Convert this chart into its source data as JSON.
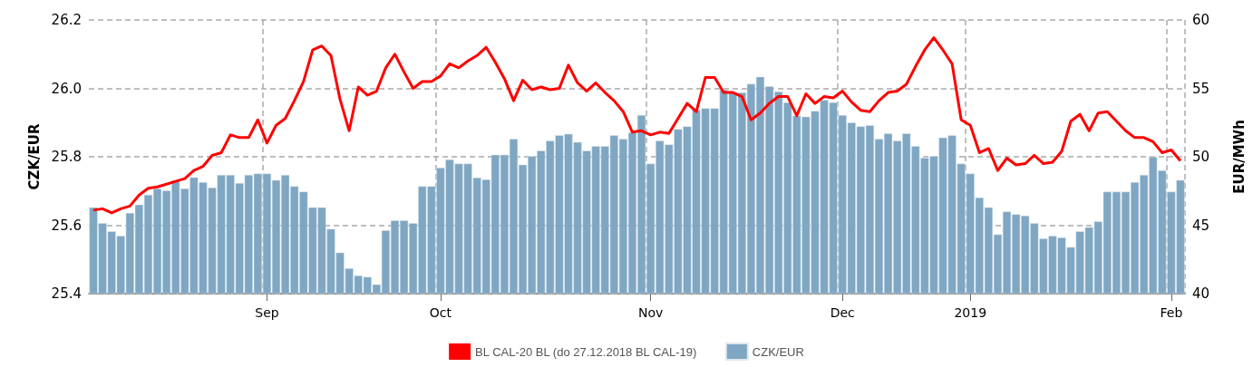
{
  "chart_data": {
    "type": "bar",
    "ylabel": "CZK/EUR",
    "y2label": "EUR/MWh",
    "categories": [
      null,
      null,
      null,
      null,
      null,
      null,
      null,
      null,
      null,
      null,
      null,
      null,
      null,
      null,
      null,
      null,
      null,
      null,
      null,
      "Sep",
      null,
      null,
      null,
      null,
      null,
      null,
      null,
      null,
      null,
      null,
      null,
      null,
      null,
      null,
      null,
      null,
      null,
      null,
      "Oct",
      null,
      null,
      null,
      null,
      null,
      null,
      null,
      null,
      null,
      null,
      null,
      null,
      null,
      null,
      null,
      null,
      null,
      null,
      null,
      null,
      null,
      null,
      "Nov",
      null,
      null,
      null,
      null,
      null,
      null,
      null,
      null,
      null,
      null,
      null,
      null,
      null,
      null,
      null,
      null,
      null,
      null,
      null,
      null,
      "Dec",
      null,
      null,
      null,
      null,
      null,
      null,
      null,
      null,
      null,
      null,
      null,
      null,
      null,
      "2019",
      null,
      null,
      null,
      null,
      null,
      null,
      null,
      null,
      null,
      null,
      null,
      null,
      null,
      null,
      null,
      null,
      null,
      null,
      null,
      null,
      null,
      "Feb",
      null
    ],
    "series": [
      {
        "name": "BL CAL-20 BL (do 27.12.2018 BL CAL-19)",
        "type": "line",
        "axis": "y2",
        "color": "#ff0000",
        "values": [
          46.1,
          46.2,
          45.9,
          46.2,
          46.4,
          47.2,
          47.7,
          47.8,
          48.0,
          48.2,
          48.4,
          49.0,
          49.3,
          50.1,
          50.3,
          51.6,
          51.4,
          51.4,
          52.7,
          51.0,
          52.3,
          52.8,
          54.1,
          55.5,
          57.8,
          58.1,
          57.4,
          54.2,
          51.9,
          55.1,
          54.5,
          54.8,
          56.5,
          57.5,
          56.2,
          55.0,
          55.5,
          55.5,
          55.9,
          56.8,
          56.5,
          57.0,
          57.4,
          58.0,
          56.9,
          55.7,
          54.1,
          55.6,
          54.9,
          55.1,
          54.9,
          55.0,
          56.7,
          55.4,
          54.8,
          55.4,
          54.7,
          54.1,
          53.3,
          51.8,
          51.9,
          51.6,
          51.8,
          51.7,
          52.8,
          53.9,
          53.3,
          55.8,
          55.8,
          54.7,
          54.7,
          54.4,
          52.7,
          53.2,
          53.9,
          54.4,
          54.4,
          53.0,
          54.6,
          53.9,
          54.4,
          54.3,
          54.8,
          54.0,
          53.4,
          53.3,
          54.1,
          54.7,
          54.8,
          55.3,
          56.6,
          57.8,
          58.7,
          57.8,
          56.8,
          52.7,
          52.3,
          50.3,
          50.6,
          49.0,
          49.9,
          49.4,
          49.5,
          50.1,
          49.5,
          49.6,
          50.4,
          52.6,
          53.1,
          51.9,
          53.2,
          53.3,
          52.6,
          51.9,
          51.4,
          51.4,
          51.1,
          50.3,
          50.5,
          49.7
        ]
      },
      {
        "name": "CZK/EUR",
        "color": "#7fa6c2",
        "values": [
          25.652,
          25.606,
          25.582,
          25.569,
          25.636,
          25.66,
          25.689,
          25.707,
          25.701,
          25.731,
          25.707,
          25.74,
          25.726,
          25.71,
          25.747,
          25.747,
          25.723,
          25.747,
          25.751,
          25.751,
          25.732,
          25.747,
          25.714,
          25.698,
          25.652,
          25.652,
          25.589,
          25.52,
          25.474,
          25.453,
          25.449,
          25.427,
          25.585,
          25.614,
          25.614,
          25.606,
          25.714,
          25.714,
          25.768,
          25.792,
          25.78,
          25.78,
          25.739,
          25.734,
          25.806,
          25.806,
          25.852,
          25.777,
          25.802,
          25.818,
          25.847,
          25.863,
          25.867,
          25.843,
          25.818,
          25.831,
          25.831,
          25.863,
          25.852,
          25.871,
          25.922,
          25.78,
          25.847,
          25.836,
          25.881,
          25.889,
          25.938,
          25.942,
          25.942,
          25.996,
          25.989,
          25.988,
          26.013,
          26.034,
          26.006,
          25.991,
          25.959,
          25.92,
          25.917,
          25.934,
          25.966,
          25.959,
          25.922,
          25.9,
          25.889,
          25.892,
          25.852,
          25.868,
          25.847,
          25.868,
          25.831,
          25.797,
          25.802,
          25.856,
          25.863,
          25.78,
          25.751,
          25.681,
          25.652,
          25.573,
          25.64,
          25.632,
          25.628,
          25.606,
          25.561,
          25.569,
          25.564,
          25.536,
          25.582,
          25.594,
          25.611,
          25.698,
          25.698,
          25.698,
          25.726,
          25.747,
          25.8,
          25.76,
          25.698,
          25.732
        ]
      }
    ],
    "ylim": [
      25.4,
      26.2
    ],
    "yticks": [
      25.4,
      25.6,
      25.8,
      {
        "value": 26,
        "label": "26.0"
      },
      26.2
    ],
    "y2lim": [
      40,
      60
    ],
    "y2ticks": [
      40,
      45,
      50,
      55,
      60
    ],
    "grid": true,
    "legend": "bottom",
    "marker": "none",
    "line_style": "solid"
  }
}
